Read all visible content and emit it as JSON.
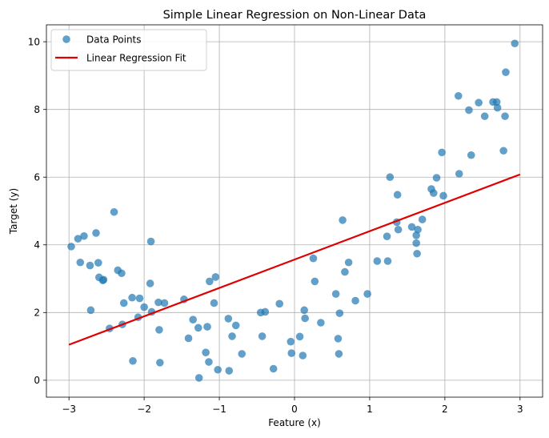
{
  "chart_data": {
    "type": "scatter",
    "title": "Simple Linear Regression on Non-Linear Data",
    "xlabel": "Feature (x)",
    "ylabel": "Target (y)",
    "xlim": [
      -3.3,
      3.3
    ],
    "ylim": [
      -0.5,
      10.5
    ],
    "xticks": [
      -3,
      -2,
      -1,
      0,
      1,
      2,
      3
    ],
    "yticks": [
      0,
      2,
      4,
      6,
      8,
      10
    ],
    "grid": true,
    "legend_placement": "top-left",
    "colors": {
      "points": "#1f77b4",
      "fit": "#e00000"
    },
    "series": [
      {
        "name": "Data Points",
        "kind": "scatter",
        "x": [
          -2.97,
          -2.88,
          -2.85,
          -2.8,
          -2.72,
          -2.71,
          -2.64,
          -2.61,
          -2.6,
          -2.55,
          -2.54,
          -2.46,
          -2.4,
          -2.35,
          -2.3,
          -2.29,
          -2.27,
          -2.16,
          -2.15,
          -2.08,
          -2.06,
          -2.0,
          -1.92,
          -1.91,
          -1.9,
          -1.81,
          -1.8,
          -1.79,
          -1.73,
          -1.47,
          -1.41,
          -1.35,
          -1.28,
          -1.27,
          -1.18,
          -1.16,
          -1.14,
          -1.13,
          -1.07,
          -1.05,
          -1.02,
          -0.88,
          -0.87,
          -0.83,
          -0.78,
          -0.7,
          -0.45,
          -0.43,
          -0.39,
          -0.28,
          -0.2,
          -0.05,
          -0.04,
          0.07,
          0.11,
          0.13,
          0.14,
          0.25,
          0.27,
          0.35,
          0.55,
          0.58,
          0.59,
          0.6,
          0.64,
          0.67,
          0.72,
          0.81,
          0.97,
          1.1,
          1.23,
          1.24,
          1.27,
          1.36,
          1.37,
          1.38,
          1.56,
          1.62,
          1.62,
          1.63,
          1.64,
          1.7,
          1.82,
          1.85,
          1.89,
          1.96,
          1.98,
          2.18,
          2.19,
          2.32,
          2.35,
          2.45,
          2.53,
          2.64,
          2.69,
          2.7,
          2.78,
          2.8,
          2.81,
          2.93
        ],
        "y": [
          3.95,
          4.18,
          3.48,
          4.26,
          3.39,
          2.07,
          4.35,
          3.47,
          3.04,
          2.95,
          2.97,
          1.53,
          4.97,
          3.25,
          3.16,
          1.65,
          2.28,
          2.44,
          0.57,
          1.86,
          2.42,
          2.16,
          2.86,
          4.1,
          2.02,
          2.3,
          1.49,
          0.52,
          2.28,
          2.39,
          1.24,
          1.79,
          1.55,
          0.07,
          0.82,
          1.58,
          0.54,
          2.92,
          2.28,
          3.05,
          0.31,
          1.82,
          0.28,
          1.3,
          1.62,
          0.78,
          2.0,
          1.3,
          2.02,
          0.34,
          2.26,
          1.14,
          0.8,
          1.29,
          0.73,
          2.07,
          1.83,
          3.6,
          2.92,
          1.7,
          2.55,
          1.23,
          0.78,
          1.98,
          4.73,
          3.2,
          3.48,
          2.35,
          2.55,
          3.52,
          4.25,
          3.52,
          6.0,
          4.67,
          5.48,
          4.45,
          4.53,
          4.28,
          4.05,
          3.74,
          4.45,
          4.75,
          5.65,
          5.53,
          5.98,
          6.73,
          5.45,
          8.4,
          6.1,
          7.98,
          6.65,
          8.2,
          7.8,
          8.22,
          8.22,
          8.05,
          6.78,
          7.8,
          9.1,
          9.95
        ]
      },
      {
        "name": "Linear Regression Fit",
        "kind": "line",
        "x": [
          -3,
          3
        ],
        "y": [
          1.05,
          6.08
        ]
      }
    ]
  }
}
